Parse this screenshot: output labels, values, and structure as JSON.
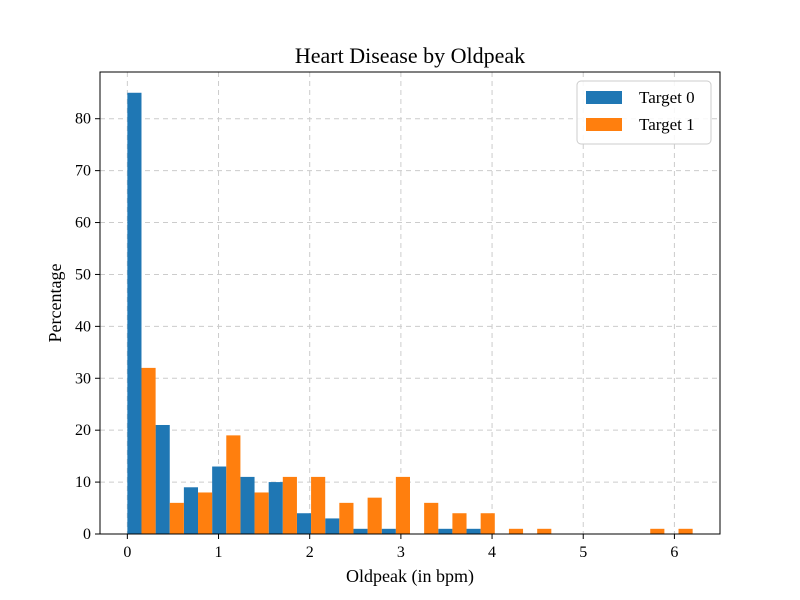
{
  "chart_data": {
    "type": "bar",
    "title": "Heart Disease by Oldpeak",
    "xlabel": "Oldpeak (in bpm)",
    "ylabel": "Percentage",
    "xlim": [
      -0.3,
      6.5
    ],
    "ylim": [
      0,
      89
    ],
    "xticks": [
      0,
      1,
      2,
      3,
      4,
      5,
      6
    ],
    "yticks": [
      0,
      10,
      20,
      30,
      40,
      50,
      60,
      70,
      80
    ],
    "grid": true,
    "legend_position": "top-right",
    "bin_edges": [
      0,
      0.31,
      0.62,
      0.93,
      1.24,
      1.55,
      1.86,
      2.17,
      2.48,
      2.79,
      3.1,
      3.41,
      3.72,
      4.03,
      4.34,
      4.65,
      4.96,
      5.27,
      5.58,
      5.89,
      6.2
    ],
    "series": [
      {
        "name": "Target 0",
        "color": "#1f77b4",
        "values": [
          85,
          21,
          9,
          13,
          11,
          10,
          4,
          3,
          1,
          1,
          0,
          1,
          1,
          0,
          0,
          0,
          0,
          0,
          0,
          0
        ]
      },
      {
        "name": "Target 1",
        "color": "#ff7f0e",
        "values": [
          32,
          6,
          8,
          19,
          8,
          11,
          11,
          6,
          7,
          11,
          6,
          4,
          4,
          1,
          1,
          0,
          0,
          0,
          1,
          1
        ]
      }
    ]
  }
}
